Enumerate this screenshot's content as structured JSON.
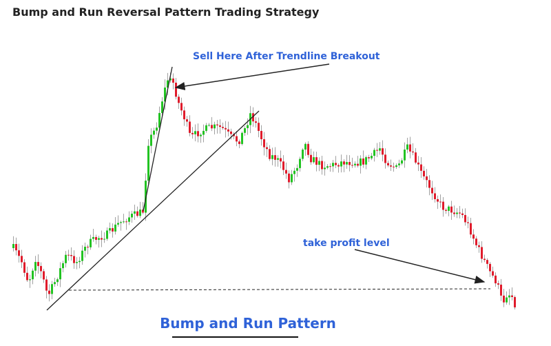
{
  "header": {
    "title": "Bump and Run Reversal Pattern Trading Strategy"
  },
  "annotations": {
    "sell": "Sell Here After Trendline Breakout",
    "take_profit": "take profit level",
    "pattern": "Bump and Run Pattern"
  }
}
